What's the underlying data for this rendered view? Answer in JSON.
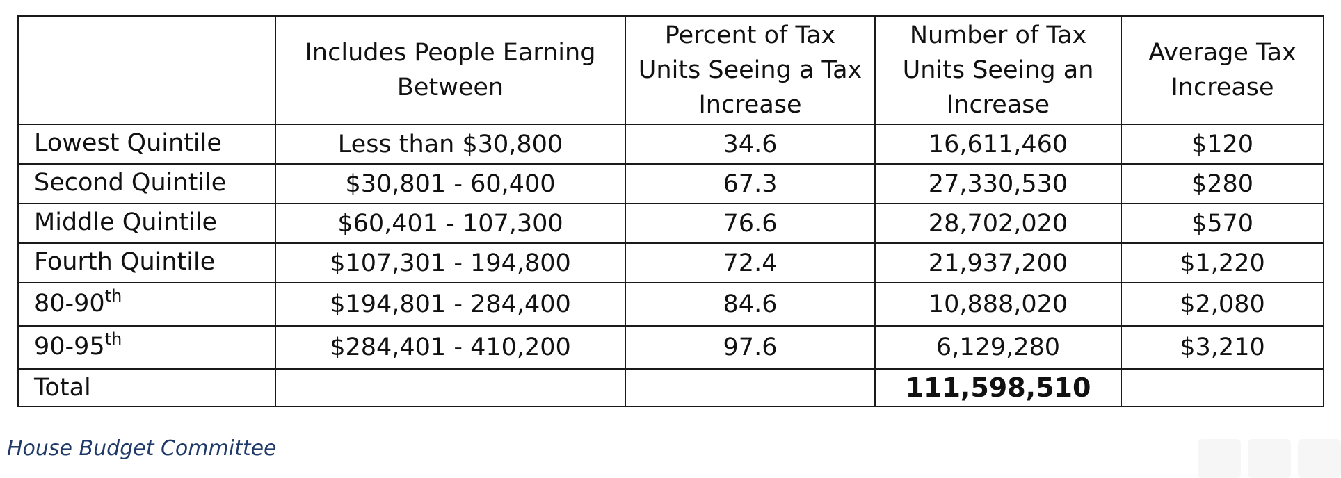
{
  "table": {
    "headers": [
      "",
      "Includes People Earning Between",
      "Percent of Tax Units Seeing a Tax Increase",
      "Number of Tax Units Seeing an Increase",
      "Average Tax Increase"
    ],
    "rows": [
      {
        "label": "Lowest Quintile",
        "sup": "",
        "range": "Less than $30,800",
        "percent": "34.6",
        "number": "16,611,460",
        "average": "$120"
      },
      {
        "label": "Second Quintile",
        "sup": "",
        "range": "$30,801 - 60,400",
        "percent": "67.3",
        "number": "27,330,530",
        "average": "$280"
      },
      {
        "label": "Middle Quintile",
        "sup": "",
        "range": "$60,401 - 107,300",
        "percent": "76.6",
        "number": "28,702,020",
        "average": "$570"
      },
      {
        "label": "Fourth Quintile",
        "sup": "",
        "range": "$107,301 - 194,800",
        "percent": "72.4",
        "number": "21,937,200",
        "average": "$1,220"
      },
      {
        "label": "80-90",
        "sup": "th",
        "range": "$194,801 - 284,400",
        "percent": "84.6",
        "number": "10,888,020",
        "average": "$2,080"
      },
      {
        "label": "90-95",
        "sup": "th",
        "range": "$284,401 - 410,200",
        "percent": "97.6",
        "number": "6,129,280",
        "average": "$3,210"
      }
    ],
    "total": {
      "label": "Total",
      "range": "",
      "percent": "",
      "number": "111,598,510",
      "average": ""
    }
  },
  "credit": "House Budget Committee"
}
